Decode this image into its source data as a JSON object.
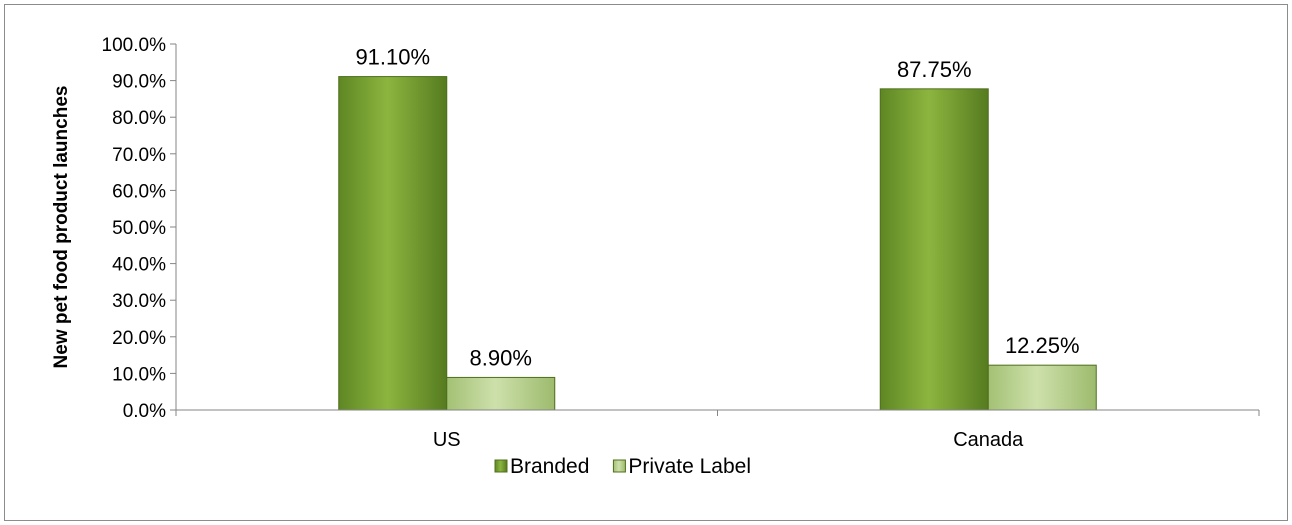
{
  "chart_data": {
    "type": "bar",
    "title": "",
    "xlabel": "",
    "ylabel": "New pet food product launches",
    "categories": [
      "US",
      "Canada"
    ],
    "series": [
      {
        "name": "Branded",
        "values": [
          91.1,
          87.75
        ],
        "labels": [
          "91.10%",
          "87.75%"
        ],
        "color": "#6f9a2c"
      },
      {
        "name": "Private Label",
        "values": [
          8.9,
          12.25
        ],
        "labels": [
          "8.90%",
          "12.25%"
        ],
        "color": "#b5cf8a"
      }
    ],
    "ylim": [
      0,
      100
    ],
    "yticks": [
      "0.0%",
      "10.0%",
      "20.0%",
      "30.0%",
      "40.0%",
      "50.0%",
      "60.0%",
      "70.0%",
      "80.0%",
      "90.0%",
      "100.0%"
    ],
    "grid": false,
    "legend_position": "bottom"
  }
}
